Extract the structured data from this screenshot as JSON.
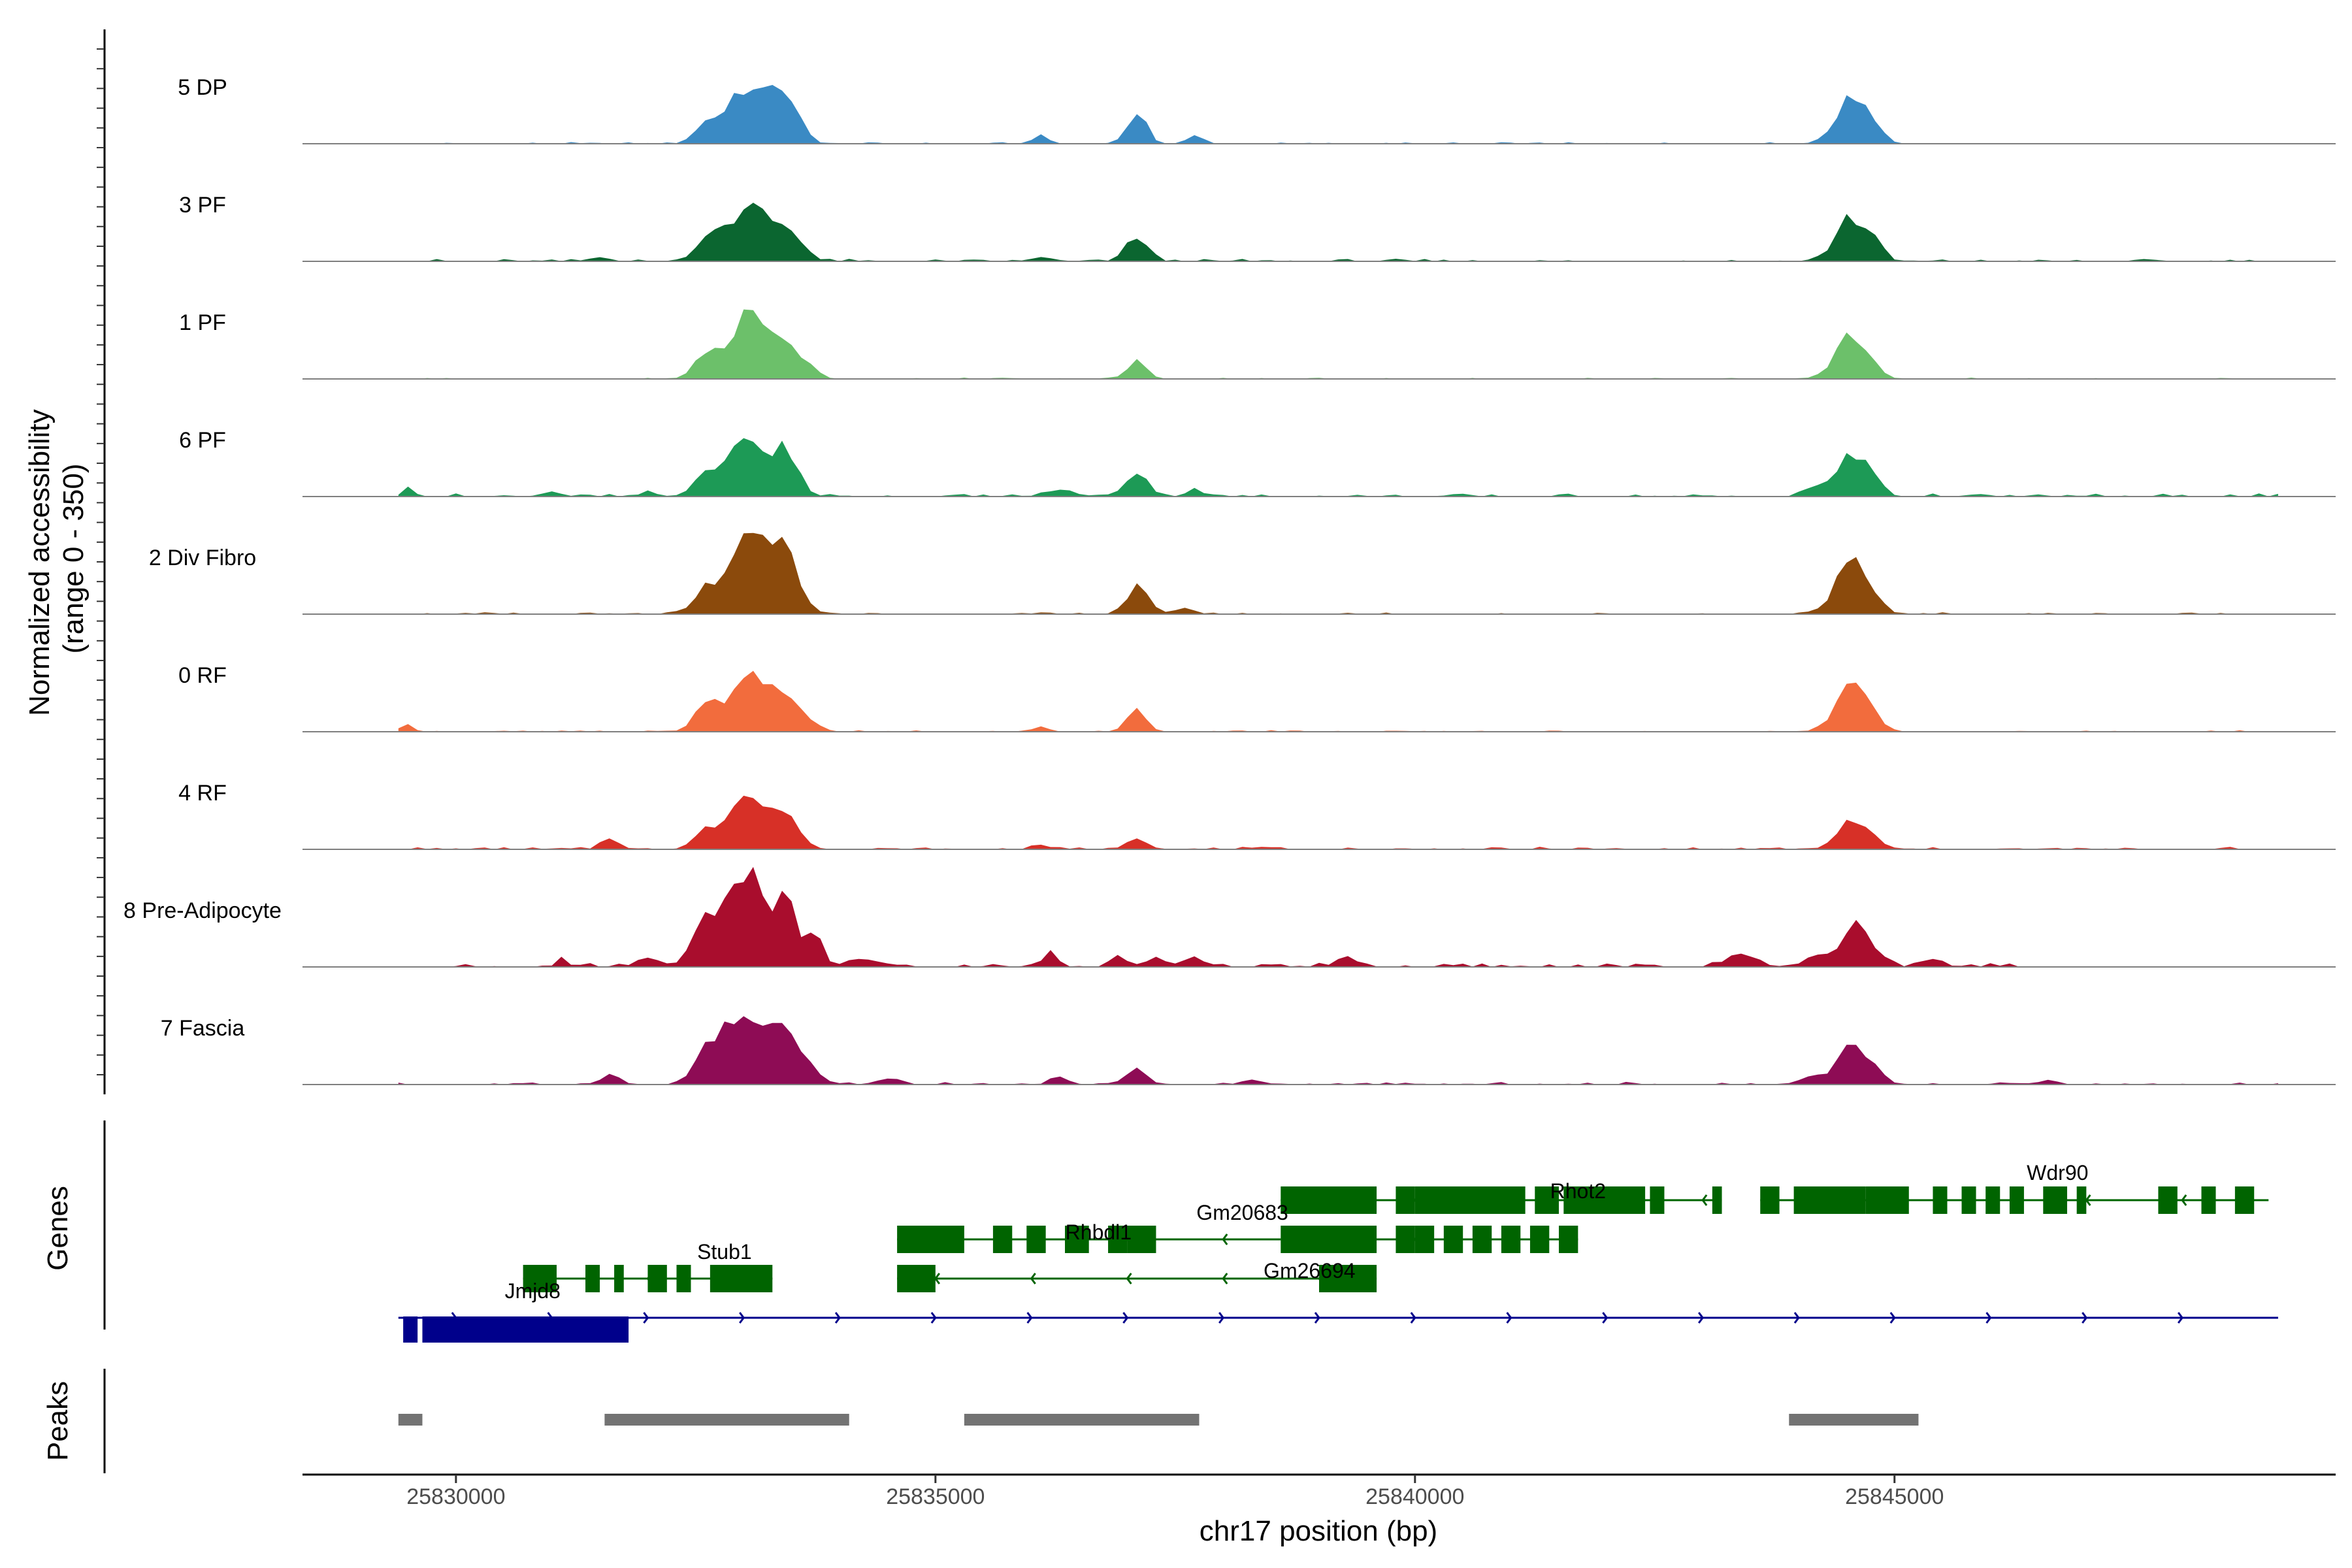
{
  "chart_data": {
    "type": "area",
    "title": "",
    "chromosome": "chr17",
    "xlabel": "chr17 position (bp)",
    "ylabel": "Normalized accessibility",
    "ylabel_range": "(range 0 - 350)",
    "ylim": [
      0,
      350
    ],
    "xlim": [
      25828400,
      25849600
    ],
    "x_ticks": [
      25830000,
      25835000,
      25840000,
      25845000
    ],
    "x_tick_labels": [
      "25830000",
      "25835000",
      "25840000",
      "25845000"
    ],
    "x_grid": [
      25829400,
      25849000,
      100
    ],
    "series": [
      {
        "name": "5 DP",
        "color": "#3a8ac4",
        "noise": 5,
        "extent": [
          25829400,
          25845300
        ],
        "peaks": [
          [
            25832600,
            12,
            45
          ],
          [
            25833050,
            22,
            185
          ],
          [
            25833400,
            13,
            115
          ],
          [
            25833550,
            10,
            60
          ],
          [
            25836100,
            8,
            25
          ],
          [
            25837100,
            10,
            100
          ],
          [
            25837700,
            8,
            30
          ],
          [
            25844550,
            16,
            150
          ],
          [
            25844800,
            9,
            40
          ]
        ]
      },
      {
        "name": "3 PF",
        "color": "#0b6630",
        "noise": 8,
        "extent": [
          25829400,
          25849000
        ],
        "peaks": [
          [
            25831500,
            10,
            15
          ],
          [
            25832600,
            12,
            60
          ],
          [
            25833050,
            22,
            180
          ],
          [
            25833400,
            13,
            85
          ],
          [
            25833600,
            10,
            40
          ],
          [
            25836100,
            8,
            15
          ],
          [
            25837100,
            11,
            80
          ],
          [
            25844550,
            16,
            145
          ],
          [
            25844800,
            9,
            40
          ]
        ]
      },
      {
        "name": "1 PF",
        "color": "#6cc06a",
        "noise": 4,
        "extent": [
          25829400,
          25849000
        ],
        "peaks": [
          [
            25832600,
            12,
            70
          ],
          [
            25833050,
            20,
            205
          ],
          [
            25833450,
            14,
            100
          ],
          [
            25833700,
            10,
            25
          ],
          [
            25837100,
            10,
            60
          ],
          [
            25844550,
            16,
            145
          ],
          [
            25844800,
            8,
            20
          ]
        ]
      },
      {
        "name": "6 PF",
        "color": "#1d9a56",
        "noise": 10,
        "extent": [
          25829400,
          25849000
        ],
        "peaks": [
          [
            25829500,
            6,
            25
          ],
          [
            25831000,
            10,
            15
          ],
          [
            25832000,
            8,
            15
          ],
          [
            25832600,
            12,
            60
          ],
          [
            25833050,
            22,
            180
          ],
          [
            25833450,
            13,
            115
          ],
          [
            25836300,
            15,
            20
          ],
          [
            25837100,
            12,
            75
          ],
          [
            25837700,
            8,
            25
          ],
          [
            25844150,
            10,
            25
          ],
          [
            25844550,
            16,
            145
          ],
          [
            25844800,
            9,
            30
          ]
        ]
      },
      {
        "name": "2 Div Fibro",
        "color": "#8b4a0c",
        "noise": 6,
        "extent": [
          25829400,
          25849000
        ],
        "peaks": [
          [
            25832600,
            12,
            70
          ],
          [
            25833050,
            20,
            290
          ],
          [
            25833450,
            14,
            180
          ],
          [
            25837100,
            11,
            90
          ],
          [
            25837600,
            10,
            20
          ],
          [
            25844550,
            16,
            175
          ],
          [
            25844800,
            9,
            30
          ]
        ]
      },
      {
        "name": "0 RF",
        "color": "#f26c3d",
        "noise": 5,
        "extent": [
          25829400,
          25849000
        ],
        "peaks": [
          [
            25829500,
            6,
            25
          ],
          [
            25832600,
            12,
            70
          ],
          [
            25833050,
            22,
            175
          ],
          [
            25833450,
            14,
            80
          ],
          [
            25833700,
            10,
            20
          ],
          [
            25836100,
            8,
            15
          ],
          [
            25837100,
            10,
            70
          ],
          [
            25844550,
            16,
            155
          ],
          [
            25844800,
            9,
            20
          ]
        ]
      },
      {
        "name": "4 RF",
        "color": "#d73027",
        "noise": 8,
        "extent": [
          25829400,
          25849000
        ],
        "peaks": [
          [
            25831600,
            9,
            35
          ],
          [
            25832600,
            12,
            65
          ],
          [
            25833050,
            20,
            170
          ],
          [
            25833450,
            14,
            90
          ],
          [
            25836100,
            8,
            15
          ],
          [
            25837100,
            10,
            40
          ],
          [
            25844550,
            14,
            105
          ],
          [
            25844800,
            9,
            20
          ]
        ]
      },
      {
        "name": "8 Pre-Adipocyte",
        "color": "#a90d2d",
        "noise": 14,
        "extent": [
          25829600,
          25846300
        ],
        "peaks": [
          [
            25831100,
            5,
            20
          ],
          [
            25832000,
            8,
            30
          ],
          [
            25832550,
            10,
            150
          ],
          [
            25832750,
            8,
            120
          ],
          [
            25833050,
            18,
            340
          ],
          [
            25833450,
            11,
            200
          ],
          [
            25833750,
            8,
            100
          ],
          [
            25834200,
            12,
            30
          ],
          [
            25836200,
            8,
            40
          ],
          [
            25836900,
            8,
            40
          ],
          [
            25837300,
            12,
            30
          ],
          [
            25837700,
            10,
            30
          ],
          [
            25839300,
            12,
            30
          ],
          [
            25843400,
            15,
            40
          ],
          [
            25844300,
            20,
            40
          ],
          [
            25844600,
            10,
            125
          ],
          [
            25844800,
            12,
            45
          ],
          [
            25845400,
            10,
            30
          ]
        ]
      },
      {
        "name": "7 Fascia",
        "color": "#8e0c55",
        "noise": 8,
        "extent": [
          25829400,
          25849000
        ],
        "peaks": [
          [
            25831600,
            10,
            30
          ],
          [
            25832600,
            12,
            110
          ],
          [
            25832800,
            10,
            60
          ],
          [
            25833050,
            20,
            200
          ],
          [
            25833450,
            14,
            170
          ],
          [
            25833700,
            10,
            40
          ],
          [
            25834500,
            10,
            20
          ],
          [
            25836300,
            10,
            20
          ],
          [
            25837100,
            10,
            50
          ],
          [
            25838300,
            10,
            15
          ],
          [
            25844150,
            12,
            30
          ],
          [
            25844550,
            14,
            125
          ],
          [
            25844800,
            10,
            40
          ],
          [
            25846600,
            10,
            15
          ]
        ]
      }
    ],
    "genes_track_label": "Genes",
    "genes": [
      {
        "name": "Wdr90",
        "strand": "-",
        "color": "#006400",
        "start": 25843600,
        "end": 25848900,
        "row": 1,
        "exons": [
          [
            25843600,
            25843800
          ],
          [
            25843950,
            25844300
          ],
          [
            25844300,
            25844700
          ],
          [
            25844700,
            25845150
          ],
          [
            25845400,
            25845550
          ],
          [
            25845700,
            25845850
          ],
          [
            25845950,
            25846100
          ],
          [
            25846200,
            25846350
          ],
          [
            25846550,
            25846800
          ],
          [
            25846900,
            25847000
          ],
          [
            25847750,
            25847950
          ],
          [
            25848200,
            25848350
          ],
          [
            25848550,
            25848750
          ]
        ]
      },
      {
        "name": "Rhot2",
        "strand": "-",
        "color": "#006400",
        "start": 25838600,
        "end": 25843200,
        "row": 1,
        "exons": [
          [
            25838600,
            25839600
          ],
          [
            25839800,
            25840000
          ],
          [
            25840000,
            25841150
          ],
          [
            25841250,
            25841500
          ],
          [
            25841550,
            25842400
          ],
          [
            25842450,
            25842600
          ],
          [
            25843100,
            25843200
          ]
        ]
      },
      {
        "name": "Gm20683",
        "strand": "-",
        "color": "#006400",
        "start": 25838600,
        "end": 25841700,
        "row": 2,
        "exons": [
          [
            25838600,
            25839600
          ],
          [
            25839800,
            25840000
          ],
          [
            25840000,
            25840200
          ],
          [
            25840300,
            25840500
          ],
          [
            25840600,
            25840800
          ],
          [
            25840900,
            25841100
          ],
          [
            25841200,
            25841400
          ],
          [
            25841500,
            25841700
          ]
        ]
      },
      {
        "name": "Rhbdl1",
        "strand": "-",
        "color": "#006400",
        "start": 25834600,
        "end": 25838600,
        "row": 2,
        "exons": [
          [
            25834600,
            25835300
          ],
          [
            25835600,
            25835800
          ],
          [
            25835950,
            25836150
          ],
          [
            25836350,
            25836600
          ],
          [
            25836800,
            25837000
          ],
          [
            25837000,
            25837300
          ]
        ]
      },
      {
        "name": "Gm26694",
        "strand": "-",
        "color": "#006400",
        "start": 25834600,
        "end": 25839600,
        "row": 3,
        "exons": [
          [
            25834600,
            25835000
          ],
          [
            25839000,
            25839600
          ]
        ]
      },
      {
        "name": "Stub1",
        "strand": "-",
        "color": "#006400",
        "start": 25830700,
        "end": 25833300,
        "row": 3,
        "exons": [
          [
            25830700,
            25831050
          ],
          [
            25831350,
            25831500
          ],
          [
            25831650,
            25831750
          ],
          [
            25832000,
            25832200
          ],
          [
            25832300,
            25832450
          ],
          [
            25832650,
            25833300
          ]
        ]
      },
      {
        "name": "Jmjd8",
        "strand": "+",
        "color": "#00008b",
        "start": 25829400,
        "end": 25849000,
        "row": 4,
        "exons": [
          [
            25829450,
            25829600
          ],
          [
            25829650,
            25831800
          ]
        ]
      }
    ],
    "peaks_track_label": "Peaks",
    "peak_regions": [
      [
        25829400,
        25829650
      ],
      [
        25831550,
        25834100
      ],
      [
        25835300,
        25837750
      ],
      [
        25843900,
        25845250
      ]
    ],
    "peak_color": "#737373"
  }
}
